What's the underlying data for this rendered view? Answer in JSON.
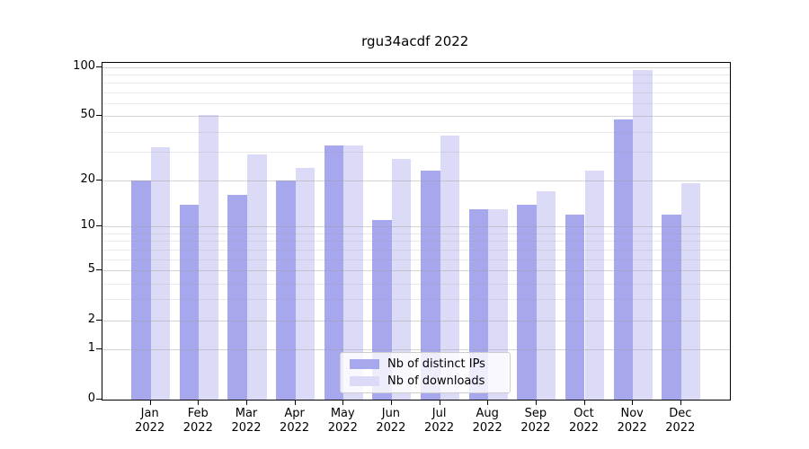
{
  "title": "rgu34acdf 2022",
  "chart_data": {
    "type": "bar",
    "title": "rgu34acdf 2022",
    "categories": [
      "Jan",
      "Feb",
      "Mar",
      "Apr",
      "May",
      "Jun",
      "Jul",
      "Aug",
      "Sep",
      "Oct",
      "Nov",
      "Dec"
    ],
    "x_year_label": "2022",
    "series": [
      {
        "name": "Nb of distinct IPs",
        "color": "#a7a7ee",
        "values": [
          20,
          14,
          16,
          20,
          33,
          11,
          23,
          13,
          14,
          12,
          48,
          12
        ]
      },
      {
        "name": "Nb of downloads",
        "color": "#dbdbf7",
        "values": [
          32,
          51,
          29,
          24,
          33,
          27,
          38,
          13,
          17,
          23,
          96,
          19
        ]
      }
    ],
    "yscale": "log10(value+1)",
    "ylim": [
      0,
      106
    ],
    "y_major_ticks": [
      {
        "label": "100",
        "value": 100
      },
      {
        "label": "50",
        "value": 50
      },
      {
        "label": "20",
        "value": 20
      },
      {
        "label": "10",
        "value": 10
      },
      {
        "label": "5",
        "value": 5
      },
      {
        "label": "2",
        "value": 2
      },
      {
        "label": "1",
        "value": 1
      },
      {
        "label": "0",
        "value": 0
      }
    ],
    "y_minor_ticks": [
      3,
      4,
      6,
      7,
      8,
      9,
      30,
      40,
      60,
      70,
      80,
      90
    ],
    "grid": "horizontal, major and minor, drawn over bars",
    "legend_position": "lower center",
    "colors": {
      "major_grid": "rgba(160,160,160,0.45)",
      "minor_grid": "rgba(160,160,160,0.22)",
      "spine": "#000000",
      "legend_border": "#cccccc"
    }
  }
}
